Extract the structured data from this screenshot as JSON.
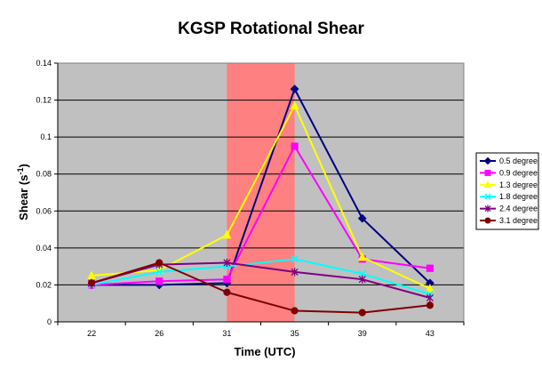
{
  "chart_data": {
    "type": "line",
    "title": "KGSP Rotational Shear",
    "xlabel": "Time (UTC)",
    "ylabel": "Shear (s",
    "ylabel_sup": "-1",
    "ylabel_end": ")",
    "categories": [
      "22",
      "26",
      "31",
      "35",
      "39",
      "43"
    ],
    "ylim": [
      0,
      0.14
    ],
    "yticks": [
      0,
      0.02,
      0.04,
      0.06,
      0.08,
      0.1,
      0.12,
      0.14
    ],
    "ytick_labels": [
      "0",
      "0.02",
      "0.04",
      "0.06",
      "0.08",
      "0.1",
      "0.12",
      "0.14"
    ],
    "grid": true,
    "plot_background": "#c0c0c0",
    "highlight": {
      "from_category_index": 2.5,
      "to_category_index": 3.5,
      "color": "#ff8080"
    },
    "legend_position": "right",
    "series": [
      {
        "name": "0.5 degree",
        "color": "#000080",
        "marker": "diamond",
        "values": [
          0.02,
          0.02,
          0.021,
          0.126,
          0.056,
          0.021
        ]
      },
      {
        "name": "0.9 degree",
        "color": "#ff00ff",
        "marker": "square",
        "values": [
          0.02,
          0.022,
          0.023,
          0.095,
          0.034,
          0.029
        ]
      },
      {
        "name": "1.3 degree",
        "color": "#ffff00",
        "marker": "triangle",
        "values": [
          0.025,
          0.028,
          0.047,
          0.117,
          0.035,
          0.018
        ]
      },
      {
        "name": "1.8 degree",
        "color": "#00ffff",
        "marker": "x",
        "values": [
          0.02,
          0.027,
          0.03,
          0.034,
          0.026,
          0.015
        ]
      },
      {
        "name": "2.4 degree",
        "color": "#800080",
        "marker": "asterisk",
        "values": [
          0.021,
          0.031,
          0.032,
          0.027,
          0.023,
          0.013
        ]
      },
      {
        "name": "3.1 degree",
        "color": "#800000",
        "marker": "circle",
        "values": [
          0.021,
          0.032,
          0.016,
          0.006,
          0.005,
          0.009
        ]
      }
    ]
  }
}
